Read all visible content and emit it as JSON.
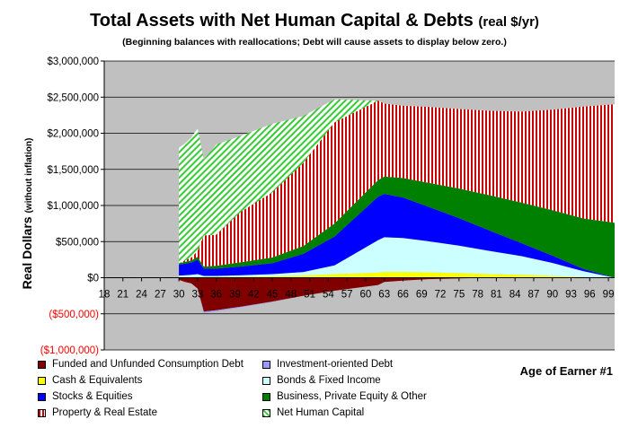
{
  "chart_data": {
    "type": "area",
    "stacked": true,
    "title": "Total Assets with Net Human Capital & Debts",
    "title_units": "(real $/yr)",
    "subtitle": "(Beginning balances with reallocations; Debt will cause assets to display below zero.)",
    "ylabel": "Real Dollars",
    "ylabel_note": "(without inflation)",
    "xlabel": "Age of Earner #1",
    "ylim": [
      -1000000,
      3000000
    ],
    "xlim": [
      18,
      100
    ],
    "y_ticks": [
      3000000,
      2500000,
      2000000,
      1500000,
      1000000,
      500000,
      0,
      -500000,
      -1000000
    ],
    "y_tick_labels": [
      "$3,000,000",
      "$2,500,000",
      "$2,000,000",
      "$1,500,000",
      "$1,000,000",
      "$500,000",
      "$0",
      "($500,000)",
      "($1,000,000)"
    ],
    "x_ticks": [
      18,
      21,
      24,
      27,
      30,
      33,
      36,
      39,
      42,
      45,
      48,
      51,
      54,
      57,
      60,
      63,
      66,
      69,
      72,
      75,
      78,
      81,
      84,
      87,
      90,
      93,
      96,
      99
    ],
    "x_tick_labels": [
      "18",
      "21",
      "24",
      "27",
      "30",
      "33",
      "36",
      "39",
      "42",
      "45",
      "48",
      "51",
      "54",
      "57",
      "60",
      "63",
      "66",
      "69",
      "72",
      "75",
      "78",
      "81",
      "84",
      "87",
      "90",
      "93",
      "96",
      "99"
    ],
    "grid": {
      "horizontal": true,
      "vertical": false
    },
    "plot_background": "#c0c0c0",
    "legend_position": "bottom",
    "x": [
      30,
      31,
      32,
      33,
      34,
      36,
      40,
      45,
      50,
      55,
      62,
      63,
      66,
      70,
      75,
      80,
      85,
      90,
      95,
      100
    ],
    "debt_series": [
      {
        "name": "Funded and Unfunded Consumption Debt",
        "color": "#800000",
        "values": [
          -30000,
          -60000,
          -80000,
          -150000,
          -470000,
          -450000,
          -400000,
          -330000,
          -250000,
          -180000,
          -100000,
          -60000,
          -40000,
          -20000,
          -10000,
          0,
          0,
          0,
          0,
          0
        ]
      },
      {
        "name": "Investment-oriented Debt",
        "color": "#9999ff",
        "values": [
          0,
          0,
          0,
          0,
          -20000,
          -15000,
          -10000,
          -5000,
          0,
          0,
          0,
          0,
          0,
          0,
          0,
          0,
          0,
          0,
          0,
          0
        ]
      }
    ],
    "asset_series": [
      {
        "name": "Cash & Equivalents",
        "color": "#ffff00",
        "values": [
          10000,
          10000,
          10000,
          10000,
          15000,
          15000,
          15000,
          20000,
          30000,
          50000,
          70000,
          80000,
          80000,
          75000,
          65000,
          50000,
          40000,
          25000,
          10000,
          0
        ]
      },
      {
        "name": "Bonds & Fixed Income",
        "color": "#ccffff",
        "values": [
          20000,
          25000,
          30000,
          40000,
          10000,
          10000,
          20000,
          30000,
          50000,
          120000,
          450000,
          480000,
          470000,
          430000,
          380000,
          320000,
          260000,
          180000,
          80000,
          0
        ]
      },
      {
        "name": "Stocks & Equities",
        "color": "#0000ff",
        "values": [
          150000,
          160000,
          170000,
          200000,
          100000,
          100000,
          120000,
          150000,
          250000,
          400000,
          600000,
          600000,
          560000,
          480000,
          380000,
          280000,
          180000,
          100000,
          30000,
          0
        ]
      },
      {
        "name": "Business, Private Equity & Other",
        "color": "#008000",
        "values": [
          20000,
          25000,
          30000,
          40000,
          30000,
          40000,
          60000,
          80000,
          110000,
          180000,
          230000,
          240000,
          270000,
          330000,
          410000,
          490000,
          560000,
          630000,
          700000,
          760000
        ]
      },
      {
        "name": "Property & Real Estate",
        "color": "#ffffff",
        "pattern": "red vertical stripes",
        "values": [
          0,
          20000,
          40000,
          80000,
          430000,
          430000,
          700000,
          900000,
          1150000,
          1400000,
          1100000,
          1010000,
          1000000,
          1050000,
          1100000,
          1170000,
          1260000,
          1390000,
          1550000,
          1640000
        ]
      },
      {
        "name": "Net Human Capital",
        "color": "#66cc66",
        "pattern": "green diagonal hatch",
        "values": [
          1600000,
          1620000,
          1660000,
          1700000,
          1050000,
          1250000,
          1050000,
          950000,
          650000,
          320000,
          0,
          0,
          0,
          0,
          0,
          0,
          0,
          0,
          0,
          0
        ]
      }
    ]
  }
}
